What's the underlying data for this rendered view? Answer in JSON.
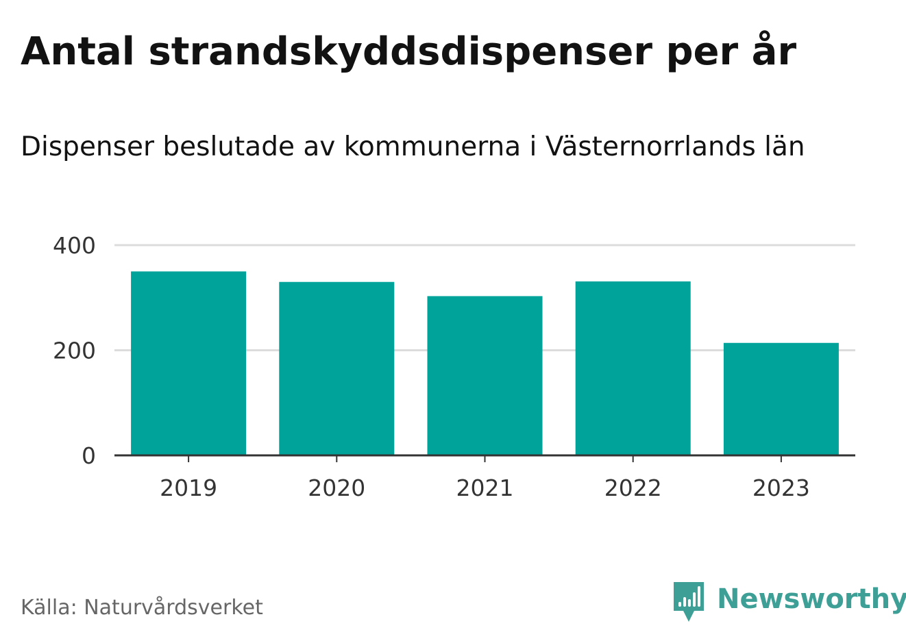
{
  "title": "Antal strandskyddsdispenser per år",
  "subtitle": "Dispenser beslutade av kommunerna i Västernorrlands län",
  "source": "Källa: Naturvårdsverket",
  "brand": {
    "name": "Newsworthy",
    "icon": "newsworthy-logo-icon",
    "color": "#3d9f96"
  },
  "colors": {
    "bar": "#00a39a",
    "grid": "#dcdcdc",
    "axis": "#333333"
  },
  "chart_data": {
    "type": "bar",
    "title": "Antal strandskyddsdispenser per år",
    "subtitle": "Dispenser beslutade av kommunerna i Västernorrlands län",
    "categories": [
      "2019",
      "2020",
      "2021",
      "2022",
      "2023"
    ],
    "values": [
      350,
      330,
      303,
      331,
      214
    ],
    "xlabel": "",
    "ylabel": "",
    "ylim": [
      0,
      400
    ],
    "yticks": [
      0,
      200,
      400
    ],
    "grid": true,
    "legend": "none"
  }
}
